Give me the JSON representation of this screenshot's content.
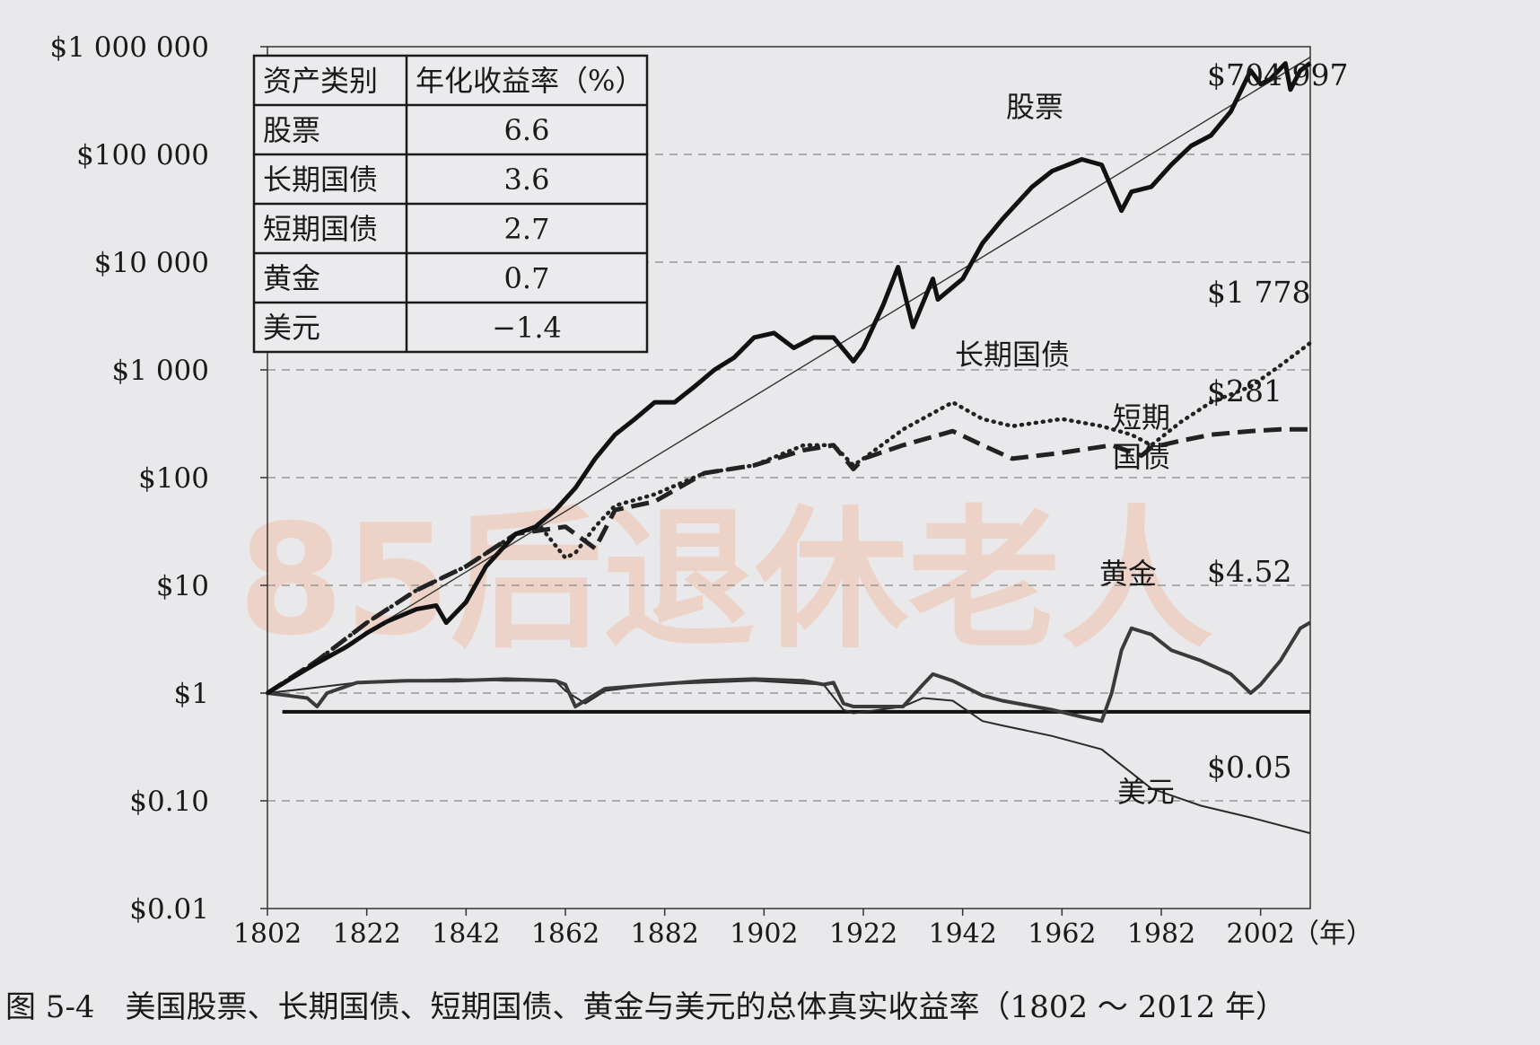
{
  "watermark": "85后退休老人",
  "caption": "图 5-4　美国股票、长期国债、短期国债、黄金与美元的总体真实收益率（1802 ～ 2012 年）",
  "table": {
    "headers": [
      "资产类别",
      "年化收益率（%）"
    ],
    "rows": [
      [
        "股票",
        "6.6"
      ],
      [
        "长期国债",
        "3.6"
      ],
      [
        "短期国债",
        "2.7"
      ],
      [
        "黄金",
        "0.7"
      ],
      [
        "美元",
        "−1.4"
      ]
    ]
  },
  "chart_data": {
    "type": "line",
    "yscale": "log",
    "ylim": [
      0.01,
      1000000
    ],
    "xlim": [
      1802,
      2012
    ],
    "x_ticks": [
      1802,
      1822,
      1842,
      1862,
      1882,
      1902,
      1922,
      1942,
      1962,
      1982,
      2002
    ],
    "x_unit": "（年）",
    "y_ticks": [
      {
        "value": 1000000,
        "label": "$1 000 000"
      },
      {
        "value": 100000,
        "label": "$100 000"
      },
      {
        "value": 10000,
        "label": "$10 000"
      },
      {
        "value": 1000,
        "label": "$1 000"
      },
      {
        "value": 100,
        "label": "$100"
      },
      {
        "value": 10,
        "label": "$10"
      },
      {
        "value": 1,
        "label": "$1"
      },
      {
        "value": 0.1,
        "label": "$0.10"
      },
      {
        "value": 0.01,
        "label": "$0.01"
      }
    ],
    "grid": "dashed horizontal",
    "series": [
      {
        "name": "股票",
        "end_label": "$704 997",
        "style": "thick",
        "x": [
          1802,
          1806,
          1812,
          1818,
          1822,
          1826,
          1832,
          1836,
          1838,
          1842,
          1846,
          1852,
          1856,
          1860,
          1864,
          1868,
          1872,
          1876,
          1880,
          1884,
          1888,
          1892,
          1896,
          1900,
          1904,
          1908,
          1912,
          1916,
          1920,
          1922,
          1926,
          1929,
          1932,
          1936,
          1937,
          1942,
          1946,
          1950,
          1956,
          1960,
          1966,
          1970,
          1974,
          1976,
          1980,
          1984,
          1988,
          1992,
          1996,
          2000,
          2002,
          2004,
          2007,
          2008,
          2010,
          2012
        ],
        "values": [
          1,
          1.3,
          1.9,
          2.7,
          3.6,
          4.6,
          6,
          6.5,
          4.5,
          7,
          15,
          30,
          35,
          50,
          80,
          150,
          250,
          350,
          500,
          500,
          700,
          1000,
          1300,
          2000,
          2200,
          1600,
          2000,
          2000,
          1200,
          1600,
          4000,
          9000,
          2500,
          7000,
          4500,
          7000,
          15000,
          25000,
          50000,
          70000,
          90000,
          80000,
          30000,
          45000,
          50000,
          80000,
          120000,
          150000,
          250000,
          600000,
          450000,
          500000,
          700000,
          400000,
          600000,
          704997
        ]
      },
      {
        "name": "长期国债",
        "end_label": "$1 778",
        "style": "dotted",
        "x": [
          1802,
          1812,
          1822,
          1832,
          1842,
          1852,
          1857,
          1862,
          1864,
          1868,
          1872,
          1880,
          1890,
          1900,
          1910,
          1916,
          1920,
          1922,
          1930,
          1940,
          1946,
          1952,
          1962,
          1970,
          1976,
          1980,
          1986,
          1992,
          2000,
          2006,
          2012
        ],
        "values": [
          1,
          2,
          4.5,
          9,
          15,
          30,
          35,
          18,
          20,
          35,
          55,
          70,
          110,
          130,
          200,
          200,
          130,
          150,
          280,
          500,
          350,
          300,
          350,
          300,
          250,
          200,
          330,
          500,
          700,
          1100,
          1778
        ]
      },
      {
        "name": "短期国债",
        "end_label": "$281",
        "style": "dashed",
        "x": [
          1802,
          1812,
          1822,
          1832,
          1842,
          1852,
          1862,
          1868,
          1872,
          1880,
          1890,
          1900,
          1910,
          1916,
          1920,
          1922,
          1930,
          1940,
          1946,
          1952,
          1962,
          1972,
          1978,
          1980,
          1986,
          1992,
          2000,
          2006,
          2012
        ],
        "values": [
          1,
          2,
          4.5,
          9,
          15,
          30,
          35,
          22,
          50,
          60,
          110,
          130,
          180,
          200,
          120,
          150,
          200,
          270,
          200,
          150,
          170,
          200,
          160,
          190,
          220,
          250,
          270,
          280,
          281
        ]
      },
      {
        "name": "黄金",
        "end_label": "$4.52",
        "style": "medium",
        "x": [
          1802,
          1806,
          1810,
          1812,
          1814,
          1820,
          1830,
          1840,
          1850,
          1860,
          1862,
          1864,
          1870,
          1880,
          1890,
          1900,
          1910,
          1914,
          1916,
          1918,
          1920,
          1930,
          1934,
          1936,
          1940,
          1946,
          1950,
          1960,
          1966,
          1970,
          1972,
          1974,
          1976,
          1980,
          1984,
          1990,
          1996,
          2000,
          2002,
          2006,
          2010,
          2012
        ],
        "values": [
          1,
          0.95,
          0.9,
          0.75,
          1,
          1.25,
          1.3,
          1.3,
          1.35,
          1.3,
          1.2,
          0.75,
          1.1,
          1.2,
          1.3,
          1.35,
          1.3,
          1.2,
          1.25,
          0.8,
          0.75,
          0.75,
          1.2,
          1.5,
          1.3,
          0.95,
          0.85,
          0.7,
          0.6,
          0.55,
          1,
          2.5,
          4,
          3.5,
          2.5,
          2,
          1.5,
          1,
          1.2,
          2,
          4,
          4.52
        ]
      },
      {
        "name": "美元",
        "end_label": "$0.05",
        "style": "thin",
        "x": [
          1802,
          1810,
          1820,
          1830,
          1840,
          1850,
          1860,
          1862,
          1866,
          1870,
          1880,
          1900,
          1914,
          1918,
          1920,
          1930,
          1934,
          1940,
          1946,
          1950,
          1960,
          1970,
          1980,
          1990,
          2000,
          2012
        ],
        "values": [
          1,
          1.1,
          1.25,
          1.3,
          1.35,
          1.3,
          1.3,
          1.05,
          0.8,
          1.05,
          1.2,
          1.3,
          1.2,
          0.7,
          0.65,
          0.75,
          0.9,
          0.85,
          0.55,
          0.5,
          0.4,
          0.3,
          0.13,
          0.09,
          0.07,
          0.05
        ]
      },
      {
        "name": "",
        "style": "trend",
        "x": [
          1802,
          2012
        ],
        "values": [
          1,
          800000
        ]
      }
    ],
    "baseline": {
      "x": [
        1805,
        2012
      ],
      "value": 0.67
    }
  }
}
